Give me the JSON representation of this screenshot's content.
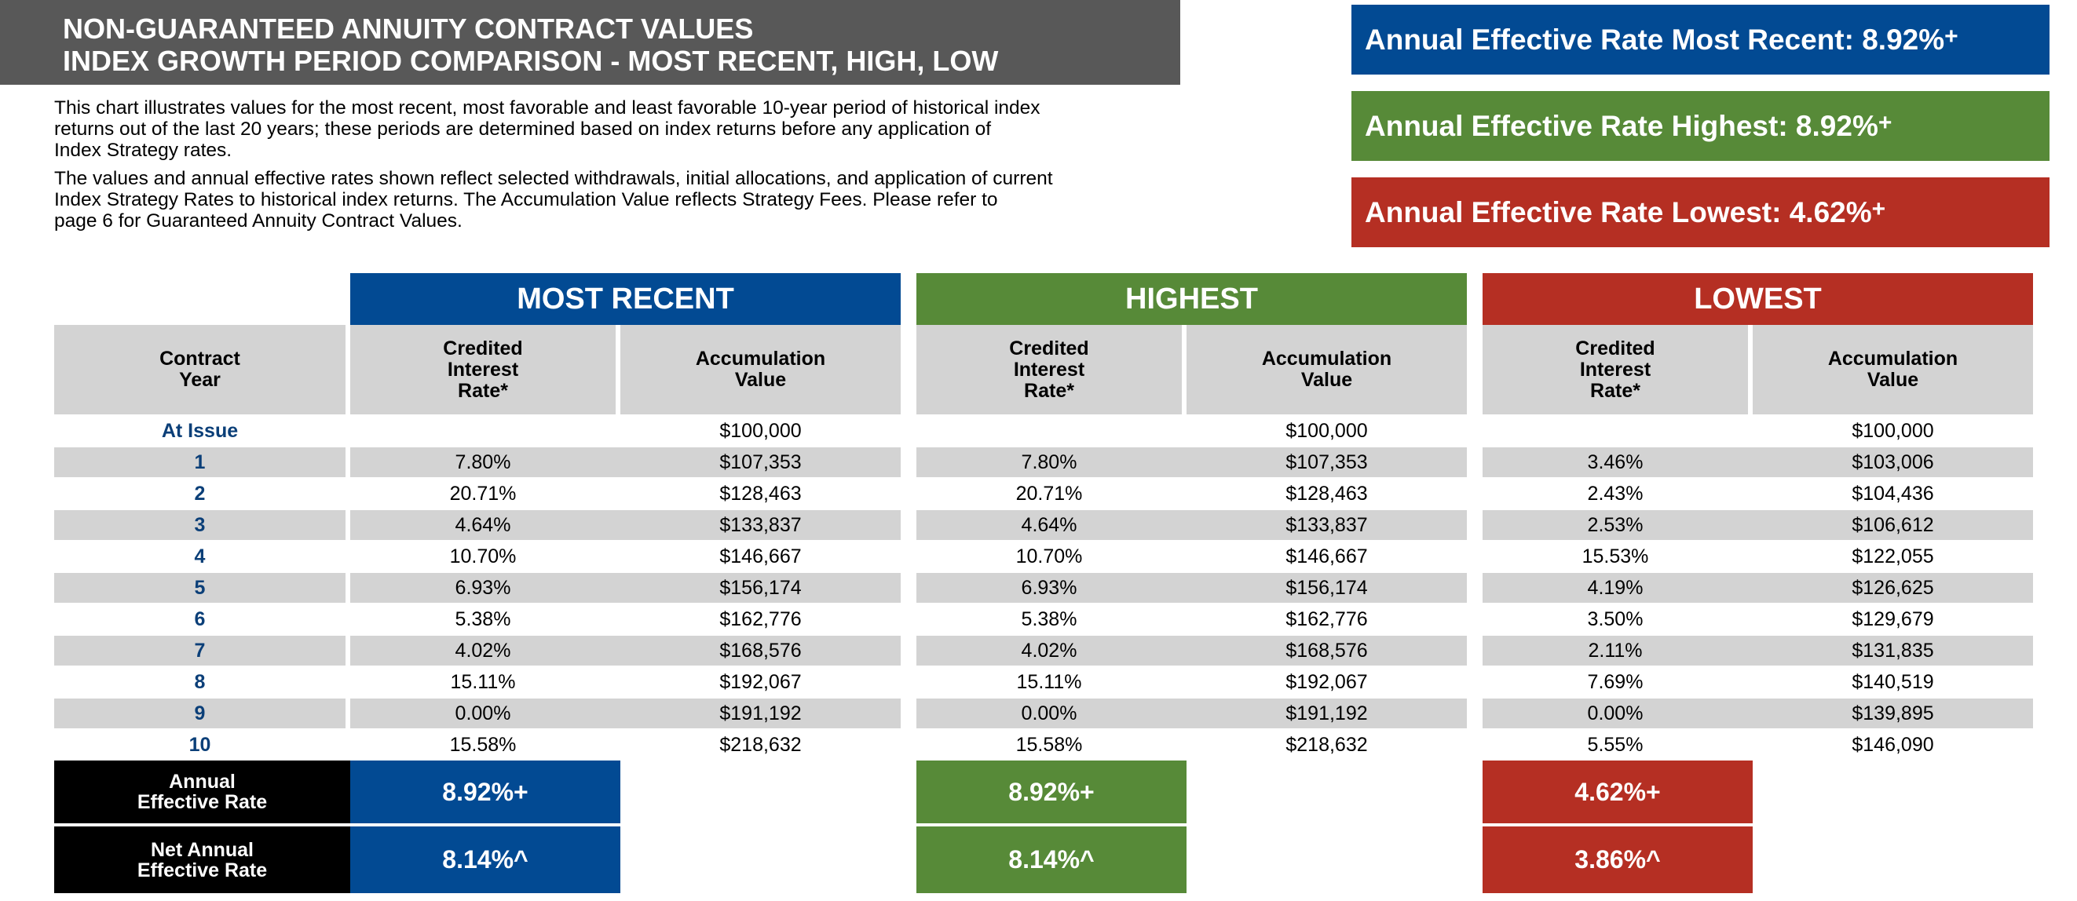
{
  "title": {
    "line1": "NON-GUARANTEED ANNUITY CONTRACT VALUES",
    "line2": "INDEX GROWTH PERIOD COMPARISON - MOST RECENT, HIGH, LOW"
  },
  "description": {
    "para1_l1": "This chart illustrates values for the most recent, most favorable and least favorable 10-year period of historical index",
    "para1_l2": "returns out of the last 20 years; these periods are determined based on index returns before any application of",
    "para1_l3": "Index Strategy rates.",
    "para2_l1": "The values and annual effective rates shown reflect selected withdrawals, initial allocations, and application of current",
    "para2_l2": "Index Strategy Rates to historical index returns. The Accumulation Value reflects Strategy Fees. Please refer to",
    "para2_l3": "page 6 for Guaranteed Annuity Contract Values."
  },
  "rate_boxes": [
    {
      "label": "Annual Effective Rate Most Recent: 8.92%",
      "mark": "+",
      "color": "#024a93"
    },
    {
      "label": "Annual Effective Rate Highest: 8.92%",
      "mark": "+",
      "color": "#578a38"
    },
    {
      "label": "Annual Effective Rate Lowest: 4.62%",
      "mark": "+",
      "color": "#b52f23"
    }
  ],
  "groups": [
    "MOST RECENT",
    "HIGHEST",
    "LOWEST"
  ],
  "columns": {
    "year": [
      "Contract",
      "Year"
    ],
    "rate": [
      "Credited",
      "Interest",
      "Rate*"
    ],
    "value": [
      "Accumulation",
      "Value"
    ]
  },
  "rows": [
    {
      "year": "At Issue",
      "mr_rate": "",
      "mr_value": "$100,000",
      "hi_rate": "",
      "hi_value": "$100,000",
      "lo_rate": "",
      "lo_value": "$100,000"
    },
    {
      "year": "1",
      "mr_rate": "7.80%",
      "mr_value": "$107,353",
      "hi_rate": "7.80%",
      "hi_value": "$107,353",
      "lo_rate": "3.46%",
      "lo_value": "$103,006"
    },
    {
      "year": "2",
      "mr_rate": "20.71%",
      "mr_value": "$128,463",
      "hi_rate": "20.71%",
      "hi_value": "$128,463",
      "lo_rate": "2.43%",
      "lo_value": "$104,436"
    },
    {
      "year": "3",
      "mr_rate": "4.64%",
      "mr_value": "$133,837",
      "hi_rate": "4.64%",
      "hi_value": "$133,837",
      "lo_rate": "2.53%",
      "lo_value": "$106,612"
    },
    {
      "year": "4",
      "mr_rate": "10.70%",
      "mr_value": "$146,667",
      "hi_rate": "10.70%",
      "hi_value": "$146,667",
      "lo_rate": "15.53%",
      "lo_value": "$122,055"
    },
    {
      "year": "5",
      "mr_rate": "6.93%",
      "mr_value": "$156,174",
      "hi_rate": "6.93%",
      "hi_value": "$156,174",
      "lo_rate": "4.19%",
      "lo_value": "$126,625"
    },
    {
      "year": "6",
      "mr_rate": "5.38%",
      "mr_value": "$162,776",
      "hi_rate": "5.38%",
      "hi_value": "$162,776",
      "lo_rate": "3.50%",
      "lo_value": "$129,679"
    },
    {
      "year": "7",
      "mr_rate": "4.02%",
      "mr_value": "$168,576",
      "hi_rate": "4.02%",
      "hi_value": "$168,576",
      "lo_rate": "2.11%",
      "lo_value": "$131,835"
    },
    {
      "year": "8",
      "mr_rate": "15.11%",
      "mr_value": "$192,067",
      "hi_rate": "15.11%",
      "hi_value": "$192,067",
      "lo_rate": "7.69%",
      "lo_value": "$140,519"
    },
    {
      "year": "9",
      "mr_rate": "0.00%",
      "mr_value": "$191,192",
      "hi_rate": "0.00%",
      "hi_value": "$191,192",
      "lo_rate": "0.00%",
      "lo_value": "$139,895"
    },
    {
      "year": "10",
      "mr_rate": "15.58%",
      "mr_value": "$218,632",
      "hi_rate": "15.58%",
      "hi_value": "$218,632",
      "lo_rate": "5.55%",
      "lo_value": "$146,090"
    }
  ],
  "footer": {
    "annual_label": [
      "Annual",
      "Effective Rate"
    ],
    "net_label": [
      "Net Annual",
      "Effective Rate"
    ],
    "annual": {
      "most_recent": "8.92%+",
      "highest": "8.92%+",
      "lowest": "4.62%+"
    },
    "net": {
      "most_recent": "8.14%^",
      "highest": "8.14%^",
      "lowest": "3.86%^"
    }
  }
}
